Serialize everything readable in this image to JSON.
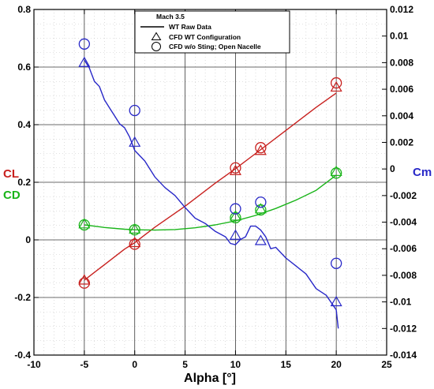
{
  "chart_data": {
    "type": "line",
    "xlabel": "Alpha [°]",
    "xlim": [
      -10,
      25
    ],
    "x_ticks": [
      "-10",
      "-5",
      "0",
      "5",
      "10",
      "15",
      "20",
      "25"
    ],
    "left_axis": {
      "ylim": [
        -0.4,
        0.8
      ],
      "ticks": [
        "-0.4",
        "-0.2",
        "0",
        "0.2",
        "0.4",
        "0.6",
        "0.8"
      ],
      "labels": [
        {
          "text": "CL",
          "color": "#c8201e"
        },
        {
          "text": "CD",
          "color": "#19b419"
        }
      ]
    },
    "right_axis": {
      "ylim": [
        -0.014,
        0.012
      ],
      "ticks": [
        "-0.014",
        "-0.012",
        "-0.01",
        "-0.008",
        "-0.006",
        "-0.004",
        "-0.002",
        "0",
        "0.002",
        "0.004",
        "0.006",
        "0.008",
        "0.01",
        "0.012"
      ],
      "label": {
        "text": "Cm",
        "color": "#2828c8"
      }
    },
    "legend": {
      "placement": "top-center",
      "title": "Mach 3.5",
      "entries": [
        {
          "label": "WT Raw Data",
          "marker": "line"
        },
        {
          "label": "CFD WT Configuration",
          "marker": "triangle"
        },
        {
          "label": "CFD w/o Sting; Open Nacelle",
          "marker": "circle"
        }
      ]
    },
    "grid": true,
    "series": [
      {
        "quantity": "CL",
        "source": "WT Raw Data",
        "color": "#c8201e",
        "axis": "left",
        "x": [
          -5,
          -3,
          -1,
          0,
          2,
          5,
          8,
          10,
          12,
          15,
          18,
          20
        ],
        "y": [
          -0.14,
          -0.086,
          -0.032,
          -0.01,
          0.044,
          0.117,
          0.197,
          0.247,
          0.3,
          0.38,
          0.46,
          0.51
        ]
      },
      {
        "quantity": "CD",
        "source": "WT Raw Data",
        "color": "#19b419",
        "axis": "left",
        "x": [
          -5,
          -3,
          -1,
          0,
          2,
          4,
          6,
          8,
          10,
          12,
          14,
          16,
          18,
          20
        ],
        "y": [
          0.052,
          0.043,
          0.037,
          0.035,
          0.034,
          0.036,
          0.042,
          0.052,
          0.066,
          0.085,
          0.109,
          0.138,
          0.172,
          0.225
        ]
      },
      {
        "quantity": "Cm",
        "source": "WT Raw Data",
        "color": "#2828c8",
        "axis": "right",
        "x": [
          -5,
          -4.5,
          -4,
          -3.5,
          -3,
          -2.5,
          -2,
          -1.5,
          -1,
          -0.5,
          0,
          1,
          2,
          3,
          4,
          5,
          6,
          7,
          8,
          9,
          9.5,
          10,
          10.5,
          11,
          11.5,
          12,
          12.5,
          13,
          13.5,
          14,
          15,
          16,
          17,
          18,
          19,
          20,
          20.2
        ],
        "y": [
          0.0082,
          0.0076,
          0.0066,
          0.0062,
          0.0052,
          0.0046,
          0.004,
          0.0034,
          0.0031,
          0.0024,
          0.0014,
          0.0006,
          -0.0006,
          -0.0014,
          -0.002,
          -0.0029,
          -0.0037,
          -0.0041,
          -0.0047,
          -0.0051,
          -0.0056,
          -0.0057,
          -0.0053,
          -0.0051,
          -0.0043,
          -0.0043,
          -0.0046,
          -0.0051,
          -0.006,
          -0.0059,
          -0.0067,
          -0.0073,
          -0.0079,
          -0.009,
          -0.0095,
          -0.0106,
          -0.012
        ]
      },
      {
        "quantity": "CL",
        "source": "CFD WT Configuration",
        "marker": "triangle",
        "color": "#c8201e",
        "axis": "left",
        "x": [
          -5,
          0,
          10,
          12.5,
          20
        ],
        "y": [
          -0.14,
          -0.01,
          0.24,
          0.31,
          0.53
        ]
      },
      {
        "quantity": "CL",
        "source": "CFD w/o Sting; Open Nacelle",
        "marker": "circle",
        "color": "#c8201e",
        "axis": "left",
        "x": [
          -5,
          0,
          10,
          12.5,
          20
        ],
        "y": [
          -0.15,
          -0.015,
          0.25,
          0.32,
          0.545
        ]
      },
      {
        "quantity": "CD",
        "source": "CFD WT Configuration",
        "marker": "triangle",
        "color": "#19b419",
        "axis": "left",
        "x": [
          -5,
          0,
          10,
          12.5,
          20
        ],
        "y": [
          0.055,
          0.037,
          0.082,
          0.107,
          0.237
        ]
      },
      {
        "quantity": "CD",
        "source": "CFD w/o Sting; Open Nacelle",
        "marker": "circle",
        "color": "#19b419",
        "axis": "left",
        "x": [
          -5,
          0,
          10,
          12.5,
          20
        ],
        "y": [
          0.052,
          0.035,
          0.077,
          0.104,
          0.232
        ]
      },
      {
        "quantity": "Cm",
        "source": "CFD WT Configuration",
        "marker": "triangle",
        "color": "#2828c8",
        "axis": "right",
        "x": [
          -5,
          0,
          10,
          12.5,
          20
        ],
        "y": [
          0.008,
          0.002,
          -0.005,
          -0.0054,
          -0.01
        ]
      },
      {
        "quantity": "Cm",
        "source": "CFD w/o Sting; Open Nacelle",
        "marker": "circle",
        "color": "#2828c8",
        "axis": "right",
        "x": [
          -5,
          0,
          10,
          12.5,
          20
        ],
        "y": [
          0.0094,
          0.0044,
          -0.003,
          -0.0025,
          -0.0071
        ]
      }
    ]
  }
}
